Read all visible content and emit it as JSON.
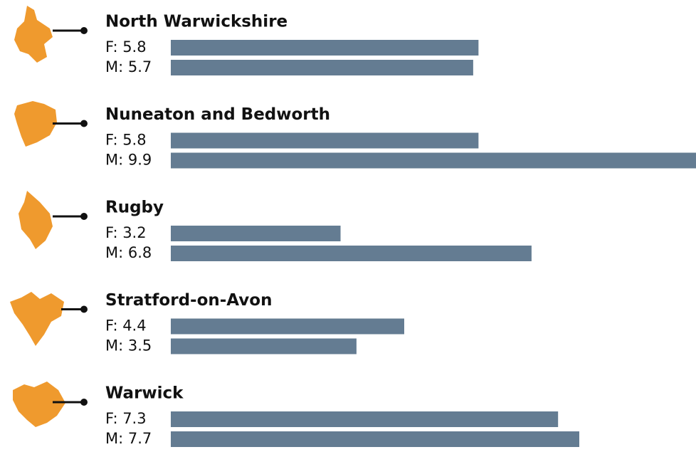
{
  "chart_data": {
    "type": "bar",
    "categories": [
      "North Warwickshire",
      "Nuneaton and Bedworth",
      "Rugby",
      "Stratford-on-Avon",
      "Warwick"
    ],
    "series": [
      {
        "color": "#647c92",
        "values": [
          5.8,
          5.8,
          3.2,
          4.4,
          7.3
        ],
        "value_labels": [
          "F: 5.8",
          "F: 5.8",
          "F: 3.2",
          "F: 4.4",
          "F: 7.3"
        ]
      },
      {
        "color": "#647c92",
        "values": [
          5.7,
          9.9,
          6.8,
          3.5,
          7.7
        ],
        "value_labels": [
          "M: 5.7",
          "M: 9.9",
          "M: 6.8",
          "M: 3.5",
          "M: 7.7"
        ]
      }
    ],
    "xlim": [
      0,
      9.9
    ],
    "map_color": "#ef9a2e"
  }
}
